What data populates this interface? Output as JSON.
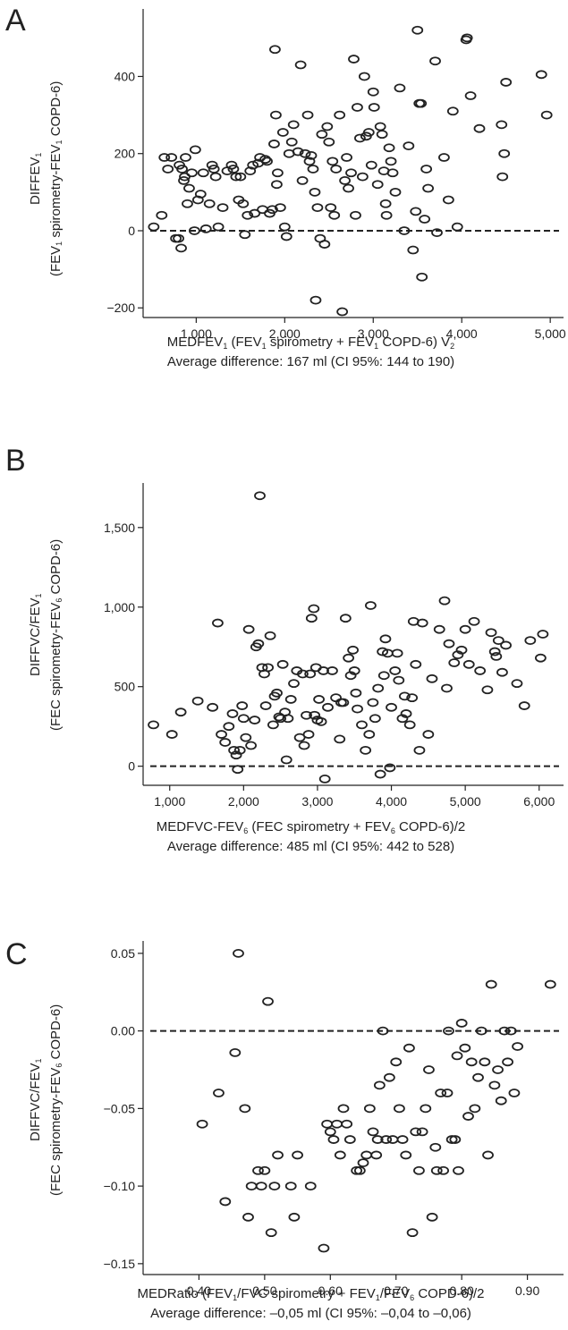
{
  "chart_data": [
    {
      "type": "scatter",
      "panel_label": "A",
      "ylabel_line1": "DIFFEV1",
      "ylabel_line2": "(FEV1 spirometry-FEV1 COPD-6)",
      "xlabel": "MEDFEV1 (FEV1 spirometry + FEV1 COPD-6) V2",
      "subtitle": "Average difference: 167 ml (CI 95%: 144 to 190)",
      "xlim": [
        400,
        5150
      ],
      "ylim": [
        -225,
        575
      ],
      "xticks": [
        1000,
        2000,
        3000,
        4000,
        5000
      ],
      "xtick_labels": [
        "1,000",
        "2,000",
        "3,000",
        "4,000",
        "5,000"
      ],
      "yticks": [
        -200,
        0,
        200,
        400
      ],
      "ytick_labels": [
        "−200",
        "0",
        "200",
        "400"
      ],
      "reference_line": 0,
      "points": [
        [
          520,
          10
        ],
        [
          610,
          40
        ],
        [
          640,
          190
        ],
        [
          680,
          160
        ],
        [
          720,
          190
        ],
        [
          770,
          -20
        ],
        [
          800,
          -20
        ],
        [
          810,
          170
        ],
        [
          830,
          -45
        ],
        [
          840,
          160
        ],
        [
          860,
          130
        ],
        [
          870,
          140
        ],
        [
          880,
          190
        ],
        [
          900,
          70
        ],
        [
          920,
          110
        ],
        [
          950,
          150
        ],
        [
          980,
          0
        ],
        [
          990,
          210
        ],
        [
          1020,
          80
        ],
        [
          1050,
          95
        ],
        [
          1080,
          150
        ],
        [
          1110,
          5
        ],
        [
          1150,
          70
        ],
        [
          1180,
          170
        ],
        [
          1200,
          160
        ],
        [
          1220,
          140
        ],
        [
          1250,
          10
        ],
        [
          1300,
          60
        ],
        [
          1350,
          155
        ],
        [
          1400,
          170
        ],
        [
          1420,
          160
        ],
        [
          1450,
          140
        ],
        [
          1480,
          80
        ],
        [
          1500,
          140
        ],
        [
          1530,
          70
        ],
        [
          1550,
          -10
        ],
        [
          1580,
          40
        ],
        [
          1610,
          155
        ],
        [
          1640,
          170
        ],
        [
          1660,
          45
        ],
        [
          1700,
          175
        ],
        [
          1720,
          190
        ],
        [
          1750,
          55
        ],
        [
          1780,
          185
        ],
        [
          1800,
          180
        ],
        [
          1830,
          45
        ],
        [
          1860,
          55
        ],
        [
          1880,
          225
        ],
        [
          1890,
          470
        ],
        [
          1900,
          300
        ],
        [
          1910,
          120
        ],
        [
          1920,
          150
        ],
        [
          1950,
          60
        ],
        [
          1980,
          255
        ],
        [
          2000,
          10
        ],
        [
          2020,
          -15
        ],
        [
          2050,
          200
        ],
        [
          2080,
          230
        ],
        [
          2100,
          275
        ],
        [
          2150,
          205
        ],
        [
          2180,
          430
        ],
        [
          2200,
          130
        ],
        [
          2230,
          200
        ],
        [
          2260,
          300
        ],
        [
          2280,
          180
        ],
        [
          2300,
          195
        ],
        [
          2320,
          160
        ],
        [
          2340,
          100
        ],
        [
          2350,
          -180
        ],
        [
          2370,
          60
        ],
        [
          2400,
          -20
        ],
        [
          2420,
          250
        ],
        [
          2450,
          -35
        ],
        [
          2480,
          270
        ],
        [
          2500,
          230
        ],
        [
          2520,
          60
        ],
        [
          2540,
          180
        ],
        [
          2560,
          40
        ],
        [
          2580,
          160
        ],
        [
          2620,
          300
        ],
        [
          2650,
          -210
        ],
        [
          2680,
          130
        ],
        [
          2700,
          190
        ],
        [
          2720,
          110
        ],
        [
          2750,
          150
        ],
        [
          2780,
          445
        ],
        [
          2800,
          40
        ],
        [
          2820,
          320
        ],
        [
          2850,
          240
        ],
        [
          2880,
          140
        ],
        [
          2900,
          400
        ],
        [
          2920,
          245
        ],
        [
          2950,
          255
        ],
        [
          2980,
          170
        ],
        [
          3000,
          360
        ],
        [
          3010,
          320
        ],
        [
          3050,
          120
        ],
        [
          3080,
          270
        ],
        [
          3100,
          250
        ],
        [
          3120,
          155
        ],
        [
          3140,
          70
        ],
        [
          3150,
          40
        ],
        [
          3180,
          215
        ],
        [
          3200,
          180
        ],
        [
          3220,
          150
        ],
        [
          3250,
          100
        ],
        [
          3300,
          370
        ],
        [
          3350,
          0
        ],
        [
          3400,
          220
        ],
        [
          3450,
          -50
        ],
        [
          3480,
          50
        ],
        [
          3500,
          520
        ],
        [
          3520,
          330
        ],
        [
          3540,
          330
        ],
        [
          3550,
          -120
        ],
        [
          3580,
          30
        ],
        [
          3600,
          160
        ],
        [
          3620,
          110
        ],
        [
          3700,
          440
        ],
        [
          3720,
          -5
        ],
        [
          3800,
          190
        ],
        [
          3850,
          80
        ],
        [
          3900,
          310
        ],
        [
          3950,
          10
        ],
        [
          4050,
          495
        ],
        [
          4060,
          500
        ],
        [
          4100,
          350
        ],
        [
          4200,
          265
        ],
        [
          4450,
          275
        ],
        [
          4460,
          140
        ],
        [
          4480,
          200
        ],
        [
          4500,
          385
        ],
        [
          4900,
          405
        ],
        [
          4960,
          300
        ]
      ]
    },
    {
      "type": "scatter",
      "panel_label": "B",
      "ylabel_line1": "DIFFVC/FEV1",
      "ylabel_line2": "(FEC spirometry-FEV6 COPD-6)",
      "xlabel": "MEDFVC-FEV6 (FEC spirometry + FEV6 COPD-6)/2",
      "subtitle": "Average difference: 485 ml (CI 95%: 442 to 528)",
      "xlim": [
        640,
        6330
      ],
      "ylim": [
        -120,
        1780
      ],
      "xticks": [
        1000,
        2000,
        3000,
        4000,
        5000,
        6000
      ],
      "xtick_labels": [
        "1,000",
        "2,000",
        "3,000",
        "4,000",
        "5,000",
        "6,000"
      ],
      "yticks": [
        0,
        500,
        1000,
        1500
      ],
      "ytick_labels": [
        "0",
        "500",
        "1,000",
        "1,500"
      ],
      "reference_line": 0,
      "points": [
        [
          780,
          260
        ],
        [
          1030,
          200
        ],
        [
          1150,
          340
        ],
        [
          1380,
          410
        ],
        [
          1580,
          370
        ],
        [
          1650,
          900
        ],
        [
          1700,
          200
        ],
        [
          1750,
          150
        ],
        [
          1800,
          250
        ],
        [
          1850,
          330
        ],
        [
          1870,
          100
        ],
        [
          1900,
          70
        ],
        [
          1920,
          -20
        ],
        [
          1950,
          100
        ],
        [
          1980,
          380
        ],
        [
          2000,
          300
        ],
        [
          2030,
          180
        ],
        [
          2070,
          860
        ],
        [
          2100,
          130
        ],
        [
          2150,
          290
        ],
        [
          2170,
          750
        ],
        [
          2200,
          770
        ],
        [
          2220,
          1700
        ],
        [
          2250,
          620
        ],
        [
          2280,
          580
        ],
        [
          2300,
          380
        ],
        [
          2330,
          620
        ],
        [
          2360,
          820
        ],
        [
          2400,
          260
        ],
        [
          2420,
          440
        ],
        [
          2450,
          460
        ],
        [
          2480,
          310
        ],
        [
          2500,
          300
        ],
        [
          2530,
          640
        ],
        [
          2560,
          340
        ],
        [
          2580,
          40
        ],
        [
          2600,
          300
        ],
        [
          2640,
          420
        ],
        [
          2680,
          520
        ],
        [
          2720,
          600
        ],
        [
          2760,
          180
        ],
        [
          2800,
          580
        ],
        [
          2820,
          130
        ],
        [
          2850,
          320
        ],
        [
          2880,
          200
        ],
        [
          2900,
          580
        ],
        [
          2920,
          930
        ],
        [
          2950,
          990
        ],
        [
          2960,
          320
        ],
        [
          2980,
          620
        ],
        [
          3000,
          290
        ],
        [
          3020,
          420
        ],
        [
          3050,
          280
        ],
        [
          3080,
          600
        ],
        [
          3100,
          -80
        ],
        [
          3140,
          370
        ],
        [
          3200,
          600
        ],
        [
          3250,
          430
        ],
        [
          3300,
          170
        ],
        [
          3320,
          400
        ],
        [
          3350,
          400
        ],
        [
          3380,
          930
        ],
        [
          3420,
          680
        ],
        [
          3450,
          570
        ],
        [
          3480,
          730
        ],
        [
          3500,
          600
        ],
        [
          3520,
          460
        ],
        [
          3540,
          360
        ],
        [
          3600,
          260
        ],
        [
          3650,
          100
        ],
        [
          3700,
          200
        ],
        [
          3720,
          1010
        ],
        [
          3750,
          400
        ],
        [
          3780,
          300
        ],
        [
          3820,
          490
        ],
        [
          3850,
          -50
        ],
        [
          3880,
          720
        ],
        [
          3900,
          570
        ],
        [
          3920,
          800
        ],
        [
          3950,
          710
        ],
        [
          3980,
          -10
        ],
        [
          4000,
          370
        ],
        [
          4050,
          600
        ],
        [
          4080,
          710
        ],
        [
          4100,
          540
        ],
        [
          4150,
          300
        ],
        [
          4180,
          440
        ],
        [
          4200,
          330
        ],
        [
          4250,
          260
        ],
        [
          4280,
          430
        ],
        [
          4300,
          910
        ],
        [
          4330,
          640
        ],
        [
          4380,
          100
        ],
        [
          4420,
          900
        ],
        [
          4500,
          200
        ],
        [
          4550,
          550
        ],
        [
          4650,
          860
        ],
        [
          4720,
          1040
        ],
        [
          4750,
          490
        ],
        [
          4780,
          770
        ],
        [
          4850,
          650
        ],
        [
          4900,
          700
        ],
        [
          4950,
          730
        ],
        [
          5000,
          860
        ],
        [
          5050,
          640
        ],
        [
          5120,
          910
        ],
        [
          5200,
          600
        ],
        [
          5300,
          480
        ],
        [
          5350,
          840
        ],
        [
          5400,
          720
        ],
        [
          5420,
          690
        ],
        [
          5450,
          790
        ],
        [
          5500,
          590
        ],
        [
          5550,
          760
        ],
        [
          5700,
          520
        ],
        [
          5800,
          380
        ],
        [
          5880,
          790
        ],
        [
          6020,
          680
        ],
        [
          6050,
          830
        ]
      ]
    },
    {
      "type": "scatter",
      "panel_label": "C",
      "ylabel_line1": "DIFFVC/FEV1",
      "ylabel_line2": "(FEC spirometry-FEV6 COPD-6)",
      "xlabel": "MEDRatio (FEV1/FVC spirometry + FEV1/FEV6 COPD-6)/2",
      "subtitle": "Average difference: –0,05 ml (CI 95%: –0,04 to –0,06)",
      "xlim": [
        0.315,
        0.955
      ],
      "ylim": [
        -0.157,
        0.058
      ],
      "xticks": [
        0.4,
        0.5,
        0.6,
        0.7,
        0.8,
        0.9
      ],
      "xtick_labels": [
        "0.40",
        "0.50",
        "0.60",
        "0.70",
        "0.80",
        "0.90"
      ],
      "yticks": [
        -0.15,
        -0.1,
        -0.05,
        0.0,
        0.05
      ],
      "ytick_labels": [
        "−0.15",
        "−0.10",
        "−0.05",
        "0.00",
        "0.05"
      ],
      "reference_line": 0,
      "points": [
        [
          0.405,
          -0.06
        ],
        [
          0.43,
          -0.04
        ],
        [
          0.44,
          -0.11
        ],
        [
          0.455,
          -0.014
        ],
        [
          0.46,
          0.05
        ],
        [
          0.47,
          -0.05
        ],
        [
          0.475,
          -0.12
        ],
        [
          0.48,
          -0.1
        ],
        [
          0.49,
          -0.09
        ],
        [
          0.495,
          -0.1
        ],
        [
          0.5,
          -0.09
        ],
        [
          0.505,
          0.019
        ],
        [
          0.51,
          -0.13
        ],
        [
          0.515,
          -0.1
        ],
        [
          0.52,
          -0.08
        ],
        [
          0.54,
          -0.1
        ],
        [
          0.545,
          -0.12
        ],
        [
          0.55,
          -0.08
        ],
        [
          0.57,
          -0.1
        ],
        [
          0.59,
          -0.14
        ],
        [
          0.595,
          -0.06
        ],
        [
          0.6,
          -0.065
        ],
        [
          0.605,
          -0.07
        ],
        [
          0.61,
          -0.06
        ],
        [
          0.615,
          -0.08
        ],
        [
          0.62,
          -0.05
        ],
        [
          0.625,
          -0.06
        ],
        [
          0.63,
          -0.07
        ],
        [
          0.64,
          -0.09
        ],
        [
          0.645,
          -0.09
        ],
        [
          0.65,
          -0.085
        ],
        [
          0.655,
          -0.08
        ],
        [
          0.66,
          -0.05
        ],
        [
          0.665,
          -0.065
        ],
        [
          0.67,
          -0.08
        ],
        [
          0.672,
          -0.07
        ],
        [
          0.675,
          -0.035
        ],
        [
          0.68,
          0.0
        ],
        [
          0.685,
          -0.07
        ],
        [
          0.69,
          -0.03
        ],
        [
          0.695,
          -0.07
        ],
        [
          0.7,
          -0.02
        ],
        [
          0.705,
          -0.05
        ],
        [
          0.71,
          -0.07
        ],
        [
          0.715,
          -0.08
        ],
        [
          0.72,
          -0.011
        ],
        [
          0.725,
          -0.13
        ],
        [
          0.73,
          -0.065
        ],
        [
          0.735,
          -0.09
        ],
        [
          0.74,
          -0.065
        ],
        [
          0.745,
          -0.05
        ],
        [
          0.75,
          -0.025
        ],
        [
          0.755,
          -0.12
        ],
        [
          0.76,
          -0.075
        ],
        [
          0.762,
          -0.09
        ],
        [
          0.768,
          -0.04
        ],
        [
          0.772,
          -0.09
        ],
        [
          0.778,
          -0.04
        ],
        [
          0.78,
          0.0
        ],
        [
          0.785,
          -0.07
        ],
        [
          0.79,
          -0.07
        ],
        [
          0.793,
          -0.016
        ],
        [
          0.795,
          -0.09
        ],
        [
          0.8,
          0.005
        ],
        [
          0.805,
          -0.011
        ],
        [
          0.81,
          -0.055
        ],
        [
          0.815,
          -0.02
        ],
        [
          0.82,
          -0.05
        ],
        [
          0.825,
          -0.03
        ],
        [
          0.83,
          0.0
        ],
        [
          0.835,
          -0.02
        ],
        [
          0.84,
          -0.08
        ],
        [
          0.845,
          0.03
        ],
        [
          0.85,
          -0.035
        ],
        [
          0.855,
          -0.025
        ],
        [
          0.86,
          -0.045
        ],
        [
          0.865,
          0.0
        ],
        [
          0.87,
          -0.02
        ],
        [
          0.875,
          0.0
        ],
        [
          0.88,
          -0.04
        ],
        [
          0.885,
          -0.01
        ],
        [
          0.935,
          0.03
        ]
      ]
    }
  ]
}
